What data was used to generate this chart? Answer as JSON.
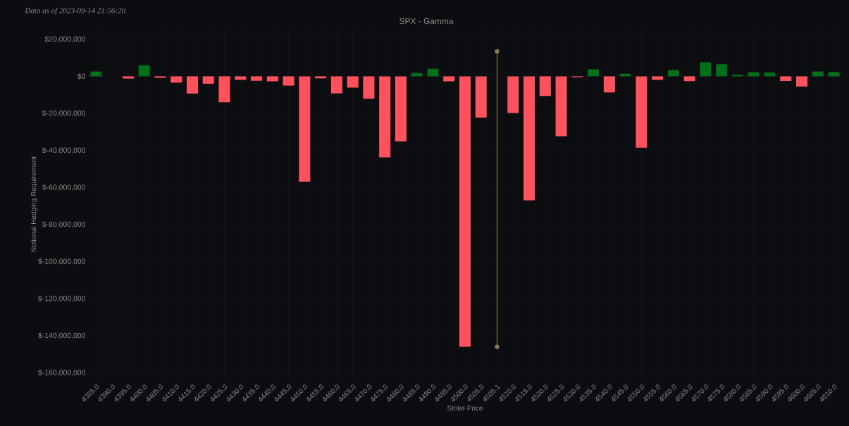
{
  "chart_data": {
    "type": "bar",
    "title": "SPX - Gamma",
    "xlabel": "Strike Price",
    "ylabel": "Notional Hedging Requirement",
    "annotations": [
      "Data as of 2023-09-14 21:56:20"
    ],
    "categories": [
      "4385.0",
      "4390.0",
      "4395.0",
      "4400.0",
      "4405.0",
      "4410.0",
      "4415.0",
      "4420.0",
      "4425.0",
      "4430.0",
      "4435.0",
      "4440.0",
      "4445.0",
      "4450.0",
      "4455.0",
      "4460.0",
      "4465.0",
      "4470.0",
      "4475.0",
      "4480.0",
      "4485.0",
      "4490.0",
      "4495.0",
      "4500.0",
      "4505.0",
      "4505.1",
      "4510.0",
      "4515.0",
      "4520.0",
      "4525.0",
      "4530.0",
      "4535.0",
      "4540.0",
      "4545.0",
      "4550.0",
      "4555.0",
      "4560.0",
      "4565.0",
      "4570.0",
      "4575.0",
      "4580.0",
      "4585.0",
      "4590.0",
      "4595.0",
      "4600.0",
      "4605.0",
      "4610.0"
    ],
    "series": [
      {
        "values": [
          2600000,
          0,
          -1200000,
          6000000,
          -800000,
          -3400000,
          -9300000,
          -4000000,
          -14000000,
          -1900000,
          -2400000,
          -2700000,
          -5000000,
          -56800000,
          -1100000,
          -9200000,
          -6100000,
          -12100000,
          -43700000,
          -35100000,
          1800000,
          4100000,
          -2700000,
          -146000000,
          -22300000,
          null,
          -19800000,
          -66900000,
          -10600000,
          -32300000,
          -500000,
          3800000,
          -8700000,
          1400000,
          -38500000,
          -1900000,
          3400000,
          -2600000,
          7600000,
          6500000,
          900000,
          2200000,
          2100000,
          -2500000,
          -5500000,
          2600000,
          2300000
        ],
        "colors": [
          "#00701a",
          "#00701a",
          "#ff525d",
          "#00701a",
          "#ff525d",
          "#ff525d",
          "#ff525d",
          "#ff525d",
          "#ff525d",
          "#ff525d",
          "#ff525d",
          "#ff525d",
          "#ff525d",
          "#ff525d",
          "#ff525d",
          "#ff525d",
          "#ff525d",
          "#ff525d",
          "#ff525d",
          "#ff525d",
          "#00701a",
          "#00701a",
          "#ff525d",
          "#ff525d",
          "#ff525d",
          "#ff525d",
          "#ff525d",
          "#ff525d",
          "#ff525d",
          "#ff525d",
          "#ff525d",
          "#00701a",
          "#ff525d",
          "#00701a",
          "#ff525d",
          "#ff525d",
          "#00701a",
          "#ff525d",
          "#00701a",
          "#00701a",
          "#00701a",
          "#00701a",
          "#00701a",
          "#ff525d",
          "#ff525d",
          "#00701a",
          "#00701a"
        ]
      },
      {
        "type": "line",
        "x": [
          "4505.1",
          "4505.1"
        ],
        "values": [
          13500000,
          -146000000
        ],
        "color": "#8c7a48",
        "marker": "circle"
      }
    ],
    "ylim": [
      -164000000,
      26000000
    ],
    "yticks": [
      {
        "value": 20000000,
        "label": "$20,000,000"
      },
      {
        "value": 0,
        "label": "$0"
      },
      {
        "value": -20000000,
        "label": "$-20,000,000"
      },
      {
        "value": -40000000,
        "label": "$-40,000,000"
      },
      {
        "value": -60000000,
        "label": "$-60,000,000"
      },
      {
        "value": -80000000,
        "label": "$-80,000,000"
      },
      {
        "value": -100000000,
        "label": "$-100,000,000"
      },
      {
        "value": -120000000,
        "label": "$-120,000,000"
      },
      {
        "value": -140000000,
        "label": "$-140,000,000"
      },
      {
        "value": -160000000,
        "label": "$-160,000,000"
      }
    ],
    "grid": true
  }
}
